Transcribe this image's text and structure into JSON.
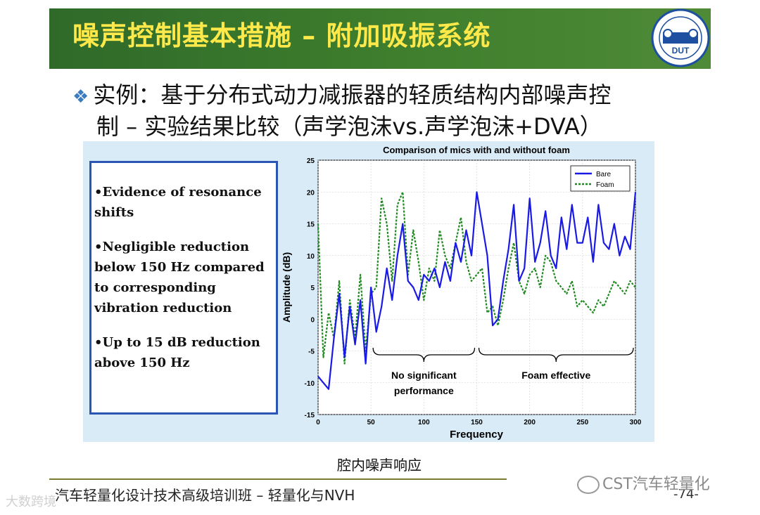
{
  "header": {
    "title": "噪声控制基本措施 – 附加吸振系统",
    "logo_text": "DUT",
    "logo_ring_text": "SCHOOL OF AUTOMOTIVE ENGINEERING"
  },
  "bullet": {
    "line1": "实例：基于分布式动力减振器的轻质结构内部噪声控",
    "line2": "制 – 实验结果比较（声学泡沫vs.声学泡沫+DVA）"
  },
  "textbox": {
    "items": [
      {
        "line1": "•Evidence of resonance",
        "line2": " shifts"
      },
      {
        "line1": "•Negligible reduction",
        "line2": " below 150 Hz compared",
        "line3": " to corresponding",
        "line4": " vibration reduction"
      },
      {
        "line1": "•Up to 15 dB reduction",
        "line2": " above 150 Hz"
      }
    ]
  },
  "chart_data": {
    "type": "line",
    "title": "Comparison of mics with and without foam",
    "xlabel": "Frequency",
    "ylabel": "Amplitude (dB)",
    "xlim": [
      0,
      300
    ],
    "ylim": [
      -15,
      25
    ],
    "xticks": [
      0,
      50,
      100,
      150,
      200,
      250,
      300
    ],
    "yticks": [
      -15,
      -10,
      -5,
      0,
      5,
      10,
      15,
      20,
      25
    ],
    "legend_position": "top-right",
    "series": [
      {
        "name": "Bare",
        "color": "#1a1ae6",
        "style": "solid",
        "x": [
          0,
          5,
          10,
          15,
          20,
          25,
          30,
          35,
          40,
          45,
          50,
          55,
          60,
          65,
          70,
          75,
          80,
          85,
          90,
          95,
          100,
          105,
          110,
          115,
          120,
          125,
          130,
          135,
          140,
          145,
          150,
          155,
          160,
          165,
          170,
          175,
          180,
          185,
          190,
          195,
          200,
          205,
          210,
          215,
          220,
          225,
          230,
          235,
          240,
          245,
          250,
          255,
          260,
          265,
          270,
          275,
          280,
          285,
          290,
          295,
          300
        ],
        "y": [
          -9,
          -10,
          -11,
          -3,
          4,
          -6,
          2,
          -4,
          3,
          -7,
          5,
          -2,
          2,
          8,
          3,
          10,
          15,
          6,
          5,
          3,
          7,
          6,
          8,
          5,
          9,
          6,
          12,
          9,
          14,
          10,
          20,
          15,
          10,
          -1,
          0,
          6,
          11,
          18,
          6,
          8,
          19,
          9,
          12,
          17,
          10,
          8,
          16,
          11,
          18,
          12,
          12,
          16,
          9,
          18,
          12,
          11,
          15,
          10,
          13,
          11,
          20
        ]
      },
      {
        "name": "Foam",
        "color": "#1f8a1f",
        "style": "dashed",
        "x": [
          0,
          5,
          10,
          15,
          20,
          25,
          30,
          35,
          40,
          45,
          50,
          55,
          60,
          65,
          70,
          75,
          80,
          85,
          90,
          95,
          100,
          105,
          110,
          115,
          120,
          125,
          130,
          135,
          140,
          145,
          150,
          155,
          160,
          165,
          170,
          175,
          180,
          185,
          190,
          195,
          200,
          205,
          210,
          215,
          220,
          225,
          230,
          235,
          240,
          245,
          250,
          255,
          260,
          265,
          270,
          275,
          280,
          285,
          290,
          295,
          300
        ],
        "y": [
          15,
          -6,
          1,
          -3,
          6,
          -7,
          3,
          -3,
          7,
          -5,
          4,
          5,
          19,
          15,
          6,
          18,
          20,
          7,
          14,
          9,
          3,
          8,
          6,
          14,
          10,
          8,
          12,
          16,
          9,
          6,
          7,
          8,
          1,
          2,
          -1,
          3,
          8,
          12,
          6,
          4,
          7,
          8,
          5,
          10,
          9,
          6,
          5,
          4,
          6,
          2,
          3,
          2,
          1,
          3,
          2,
          4,
          6,
          5,
          4,
          6,
          5
        ]
      }
    ],
    "annotations": [
      {
        "text_line1": "No significant",
        "text_line2": "performance",
        "x_from": 50,
        "x_to": 150
      },
      {
        "text_line1": "Foam effective",
        "x_from": 150,
        "x_to": 300
      }
    ]
  },
  "caption": "腔内噪声响应",
  "footer": {
    "text": "汽车轻量化设计技术高级培训班 – 轻量化与NVH",
    "page": "-74-"
  },
  "watermarks": {
    "right": "CST汽车轻量化",
    "left": "大数跨境"
  }
}
